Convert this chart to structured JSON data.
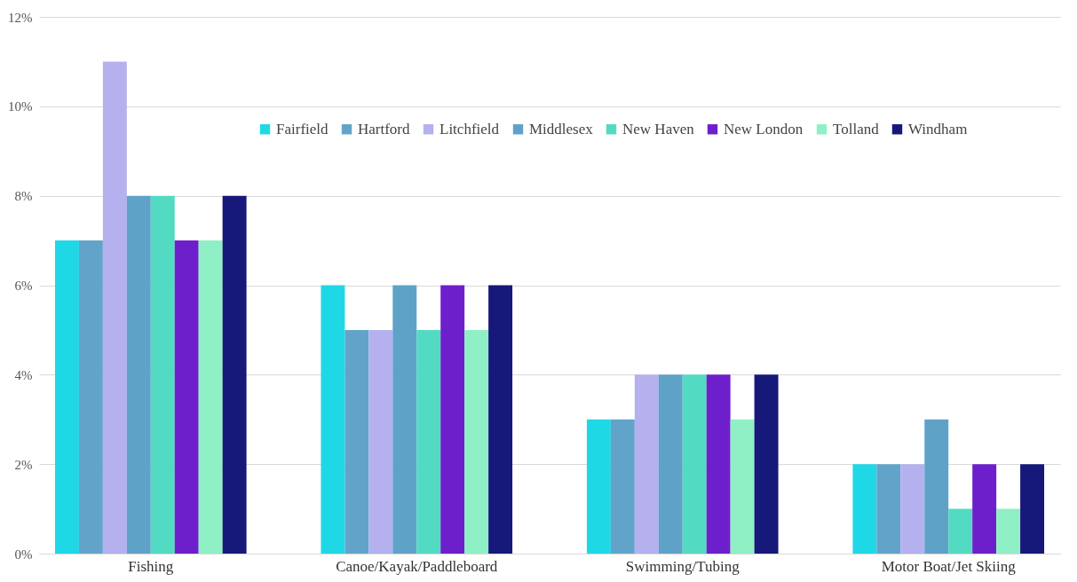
{
  "chart_data": {
    "type": "bar",
    "categories": [
      "Fishing",
      "Canoe/Kayak/Paddleboard",
      "Swimming/Tubing",
      "Motor Boat/Jet Skiing"
    ],
    "series": [
      {
        "name": "Fairfield",
        "color": "#1fd8e6",
        "values": [
          7,
          6,
          3,
          2
        ]
      },
      {
        "name": "Hartford",
        "color": "#62a4c9",
        "values": [
          7,
          5,
          3,
          2
        ]
      },
      {
        "name": "Litchfield",
        "color": "#b4b1ee",
        "values": [
          11,
          5,
          4,
          2
        ]
      },
      {
        "name": "Middlesex",
        "color": "#5fa2c8",
        "values": [
          8,
          6,
          4,
          3
        ]
      },
      {
        "name": "New Haven",
        "color": "#52dbc2",
        "values": [
          8,
          5,
          4,
          1
        ]
      },
      {
        "name": "New London",
        "color": "#6e1fcc",
        "values": [
          7,
          6,
          4,
          2
        ]
      },
      {
        "name": "Tolland",
        "color": "#8ff0c6",
        "values": [
          7,
          5,
          3,
          1
        ]
      },
      {
        "name": "Windham",
        "color": "#16187a",
        "values": [
          8,
          6,
          4,
          2
        ]
      }
    ],
    "ylim": [
      0,
      12
    ],
    "yticks": [
      {
        "value": 0,
        "label": "0%"
      },
      {
        "value": 2,
        "label": "2%"
      },
      {
        "value": 4,
        "label": "4%"
      },
      {
        "value": 6,
        "label": "6%"
      },
      {
        "value": 8,
        "label": "8%"
      },
      {
        "value": 10,
        "label": "10%"
      },
      {
        "value": 12,
        "label": "12%"
      }
    ],
    "grid": true,
    "legend": "top right"
  }
}
